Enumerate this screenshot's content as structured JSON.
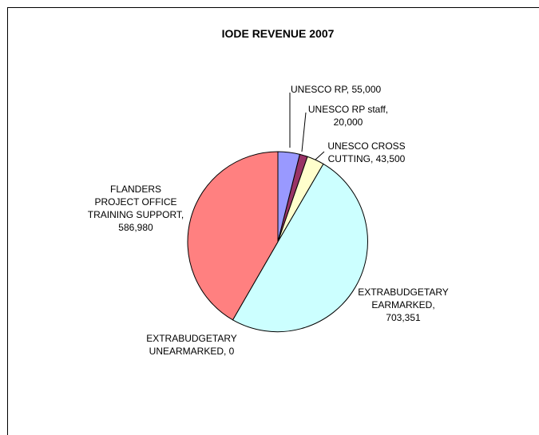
{
  "chart_data": {
    "type": "pie",
    "title": "IODE REVENUE 2007",
    "slices": [
      {
        "label": [
          "UNESCO RP, 55,000"
        ],
        "value": 55000,
        "color": "#9999FF"
      },
      {
        "label": [
          "UNESCO RP staff,",
          "20,000"
        ],
        "value": 20000,
        "color": "#993366"
      },
      {
        "label": [
          "UNESCO CROSS",
          "CUTTING, 43,500"
        ],
        "value": 43500,
        "color": "#FFFFCC"
      },
      {
        "label": [
          "EXTRABUDGETARY",
          "EARMARKED,",
          "703,351"
        ],
        "value": 703351,
        "color": "#CCFFFF"
      },
      {
        "label": [
          "EXTRABUDGETARY",
          "UNEARMARKED, 0"
        ],
        "value": 0,
        "color": "#000000"
      },
      {
        "label": [
          "FLANDERS",
          "PROJECT OFFICE",
          "TRAINING SUPPORT,",
          "586,980"
        ],
        "value": 586980,
        "color": "#FF8080"
      }
    ],
    "legend": "none"
  }
}
